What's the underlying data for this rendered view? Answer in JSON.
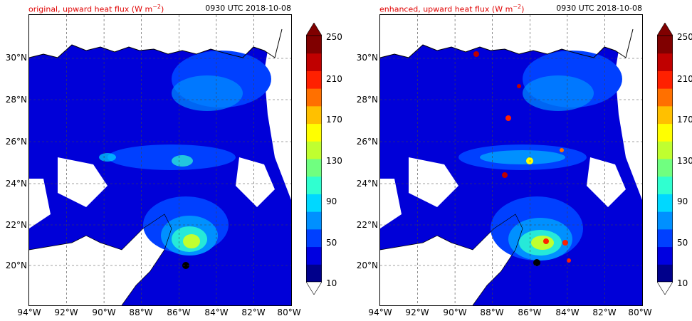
{
  "panels": [
    {
      "title_prefix": "original, upward heat flux (W m",
      "title_exp": "−2",
      "title_suffix": ")",
      "time": "0930 UTC 2018-10-08"
    },
    {
      "title_prefix": "enhanced, upward heat flux (W m",
      "title_exp": "−2",
      "title_suffix": ")",
      "time": "0930 UTC 2018-10-08"
    }
  ],
  "lat_labels": [
    "30°N",
    "28°N",
    "26°N",
    "24°N",
    "22°N",
    "20°N"
  ],
  "lon_labels": [
    "94°W",
    "92°W",
    "90°W",
    "88°W",
    "86°W",
    "84°W",
    "82°W",
    "80°W"
  ],
  "colorbar": {
    "tick_labels": [
      "250",
      "210",
      "170",
      "130",
      "90",
      "50",
      "10"
    ],
    "colors": [
      "#00008b",
      "#0000e0",
      "#0040ff",
      "#0090ff",
      "#00d8ff",
      "#30ffd0",
      "#70ff80",
      "#c0ff30",
      "#ffff00",
      "#ffc000",
      "#ff7000",
      "#ff2000",
      "#c00000",
      "#800000"
    ],
    "extend_min_color": "#ffffff",
    "extend_max_color": "#800000"
  }
}
